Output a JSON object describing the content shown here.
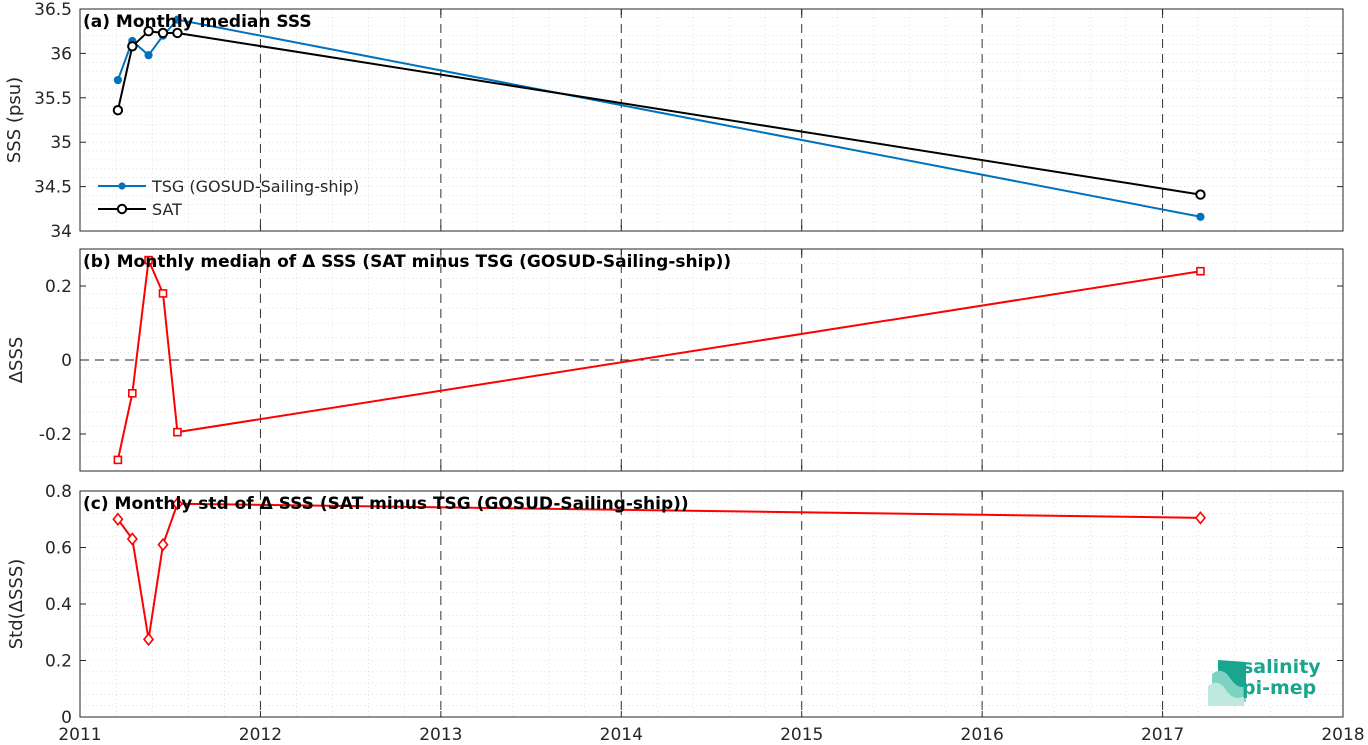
{
  "chart_data": [
    {
      "panel": "a",
      "type": "line",
      "title": "(a) Monthly median SSS",
      "ylabel": "SSS (psu)",
      "xlim": [
        2011,
        2018
      ],
      "ylim": [
        34,
        36.5
      ],
      "yticks": [
        34,
        34.5,
        35,
        35.5,
        36,
        36.5
      ],
      "ytick_labels": [
        "34",
        "34.5",
        "35",
        "35.5",
        "36",
        "36.5"
      ],
      "grid": true,
      "legend_position": "lower-left",
      "series": [
        {
          "name": "TSG (GOSUD-Sailing-ship)",
          "color": "#0072BD",
          "marker": "filled-dot",
          "x": [
            2011.21,
            2011.29,
            2011.38,
            2011.46,
            2011.54,
            2017.21
          ],
          "y": [
            35.7,
            36.14,
            35.98,
            36.2,
            36.38,
            34.16
          ]
        },
        {
          "name": "SAT",
          "color": "#000000",
          "marker": "open-circle",
          "x": [
            2011.21,
            2011.29,
            2011.38,
            2011.46,
            2011.54,
            2017.21
          ],
          "y": [
            35.36,
            36.08,
            36.25,
            36.23,
            36.23,
            34.41
          ]
        }
      ]
    },
    {
      "panel": "b",
      "type": "line",
      "title": "(b) Monthly median of Δ SSS (SAT minus TSG (GOSUD-Sailing-ship))",
      "ylabel": "ΔSSS",
      "xlim": [
        2011,
        2018
      ],
      "ylim": [
        -0.3,
        0.3
      ],
      "yticks": [
        -0.2,
        0,
        0.2
      ],
      "ytick_labels": [
        "-0.2",
        "0",
        "0.2"
      ],
      "zero_line": true,
      "grid": true,
      "series": [
        {
          "name": "",
          "color": "#ff0000",
          "marker": "open-square",
          "x": [
            2011.21,
            2011.29,
            2011.38,
            2011.46,
            2011.54,
            2017.21
          ],
          "y": [
            -0.27,
            -0.09,
            0.27,
            0.18,
            -0.195,
            0.24
          ]
        }
      ]
    },
    {
      "panel": "c",
      "type": "line",
      "title": "(c) Monthly std of Δ SSS (SAT minus TSG (GOSUD-Sailing-ship))",
      "ylabel": "Std(ΔSSS)",
      "xlim": [
        2011,
        2018
      ],
      "ylim": [
        0,
        0.8
      ],
      "yticks": [
        0,
        0.2,
        0.4,
        0.6,
        0.8
      ],
      "ytick_labels": [
        "0",
        "0.2",
        "0.4",
        "0.6",
        "0.8"
      ],
      "grid": true,
      "series": [
        {
          "name": "",
          "color": "#ff0000",
          "marker": "open-diamond",
          "x": [
            2011.21,
            2011.29,
            2011.38,
            2011.46,
            2011.54,
            2017.21
          ],
          "y": [
            0.7,
            0.63,
            0.275,
            0.61,
            0.755,
            0.705
          ]
        }
      ]
    }
  ],
  "xticks": [
    2011,
    2012,
    2013,
    2014,
    2015,
    2016,
    2017,
    2018
  ],
  "xtick_labels": [
    "2011",
    "2012",
    "2013",
    "2014",
    "2015",
    "2016",
    "2017",
    "2018"
  ],
  "logo": {
    "line1": "salinity",
    "line2": "pi-mep",
    "color": "#1aa58f"
  }
}
